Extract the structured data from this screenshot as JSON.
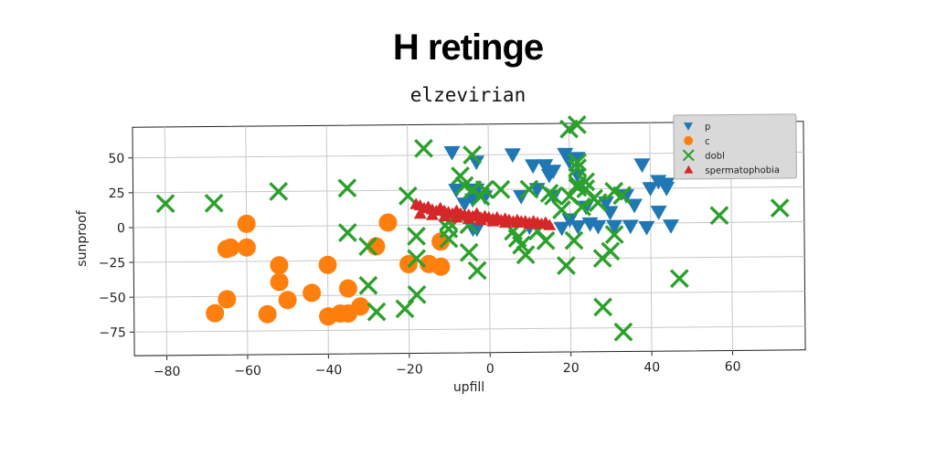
{
  "chart_data": {
    "type": "scatter",
    "title": "H retinge",
    "subtitle": "elzevirian",
    "xlabel": "upfill",
    "ylabel": "sunproof",
    "xlim": [
      -88,
      78
    ],
    "ylim": [
      -92,
      72
    ],
    "xticks": [
      -80,
      -60,
      -40,
      -20,
      0,
      20,
      40,
      60
    ],
    "yticks": [
      50,
      25,
      0,
      -25,
      -50,
      -75
    ],
    "grid": true,
    "legend": "top-right",
    "series": [
      {
        "name": "p",
        "marker": "triangle-down",
        "color": "#1f77b4",
        "points": [
          [
            -8,
            25
          ],
          [
            -4,
            18
          ],
          [
            -2,
            3
          ],
          [
            -4,
            -3
          ],
          [
            -3,
            25
          ],
          [
            -3,
            45
          ],
          [
            -9,
            52
          ],
          [
            -1,
            20
          ],
          [
            -6,
            15
          ],
          [
            -3,
            -3
          ],
          [
            6,
            50
          ],
          [
            8,
            20
          ],
          [
            10,
            -2
          ],
          [
            11,
            42
          ],
          [
            14,
            42
          ],
          [
            15,
            35
          ],
          [
            16,
            38
          ],
          [
            19,
            50
          ],
          [
            20,
            45
          ],
          [
            22,
            47
          ],
          [
            18,
            -3
          ],
          [
            20,
            3
          ],
          [
            24,
            12
          ],
          [
            22,
            -2
          ],
          [
            27,
            -2
          ],
          [
            29,
            15
          ],
          [
            30,
            8
          ],
          [
            31,
            -2
          ],
          [
            35,
            -2
          ],
          [
            36,
            13
          ],
          [
            34,
            20
          ],
          [
            38,
            42
          ],
          [
            39,
            -3
          ],
          [
            40,
            25
          ],
          [
            42,
            8
          ],
          [
            42,
            30
          ],
          [
            44,
            25
          ],
          [
            44,
            28
          ],
          [
            45,
            -2
          ],
          [
            16,
            20
          ],
          [
            12,
            25
          ],
          [
            22,
            35
          ],
          [
            25,
            0
          ]
        ]
      },
      {
        "name": "c",
        "color": "#ff7f0e",
        "marker": "circle",
        "points": [
          [
            -60,
            2
          ],
          [
            -64,
            -15
          ],
          [
            -60,
            -15
          ],
          [
            -65,
            -16
          ],
          [
            -52,
            -28
          ],
          [
            -52,
            -40
          ],
          [
            -50,
            -53
          ],
          [
            -44,
            -48
          ],
          [
            -40,
            -28
          ],
          [
            -40,
            -65
          ],
          [
            -37,
            -63
          ],
          [
            -35,
            -63
          ],
          [
            -35,
            -45
          ],
          [
            -32,
            -58
          ],
          [
            -28,
            -15
          ],
          [
            -25,
            2
          ],
          [
            -20,
            -28
          ],
          [
            -15,
            -28
          ],
          [
            -12,
            -12
          ],
          [
            -12,
            -30
          ],
          [
            -65,
            -52
          ],
          [
            -68,
            -62
          ],
          [
            -55,
            -63
          ]
        ]
      },
      {
        "name": "dobl",
        "color": "#2ca02c",
        "marker": "x",
        "points": [
          [
            -80,
            17
          ],
          [
            -68,
            17
          ],
          [
            -52,
            25
          ],
          [
            -35,
            27
          ],
          [
            -35,
            -5
          ],
          [
            -30,
            -15
          ],
          [
            -30,
            -43
          ],
          [
            -28,
            -62
          ],
          [
            -21,
            -60
          ],
          [
            -18,
            -8
          ],
          [
            -18,
            -50
          ],
          [
            -18,
            -24
          ],
          [
            -20,
            21
          ],
          [
            -16,
            55
          ],
          [
            -10,
            -10
          ],
          [
            -10,
            -3
          ],
          [
            -10,
            2
          ],
          [
            -5,
            0
          ],
          [
            -7,
            35
          ],
          [
            -6,
            28
          ],
          [
            -4,
            25
          ],
          [
            -2,
            20
          ],
          [
            -1,
            25
          ],
          [
            -5,
            -20
          ],
          [
            -4,
            50
          ],
          [
            -3,
            -33
          ],
          [
            3,
            25
          ],
          [
            6,
            -5
          ],
          [
            7,
            -10
          ],
          [
            8,
            -15
          ],
          [
            9,
            -22
          ],
          [
            10,
            25
          ],
          [
            12,
            -5
          ],
          [
            14,
            -12
          ],
          [
            15,
            22
          ],
          [
            16,
            20
          ],
          [
            18,
            10
          ],
          [
            19,
            -30
          ],
          [
            20,
            20
          ],
          [
            21,
            -12
          ],
          [
            22,
            26
          ],
          [
            22,
            40
          ],
          [
            22,
            28
          ],
          [
            23,
            12
          ],
          [
            24,
            25
          ],
          [
            26,
            18
          ],
          [
            27,
            15
          ],
          [
            28,
            -25
          ],
          [
            28,
            -60
          ],
          [
            30,
            -20
          ],
          [
            31,
            -8
          ],
          [
            31,
            23
          ],
          [
            33,
            20
          ],
          [
            33,
            -78
          ],
          [
            47,
            -40
          ],
          [
            57,
            5
          ],
          [
            72,
            10
          ],
          [
            20,
            68
          ],
          [
            22,
            71
          ],
          [
            22,
            44
          ],
          [
            24,
            30
          ]
        ]
      },
      {
        "name": "spermatophobia",
        "color": "#d62728",
        "marker": "triangle-up",
        "points": [
          [
            -18,
            15
          ],
          [
            -17,
            14
          ],
          [
            -16,
            12
          ],
          [
            -15,
            13
          ],
          [
            -14,
            11
          ],
          [
            -13,
            10
          ],
          [
            -12,
            12
          ],
          [
            -11,
            10
          ],
          [
            -10,
            9
          ],
          [
            -9,
            8
          ],
          [
            -8,
            10
          ],
          [
            -7,
            8
          ],
          [
            -6,
            7
          ],
          [
            -5,
            7
          ],
          [
            -4,
            6
          ],
          [
            -3,
            8
          ],
          [
            -2,
            5
          ],
          [
            -1,
            6
          ],
          [
            0,
            5
          ],
          [
            1,
            4
          ],
          [
            2,
            5
          ],
          [
            3,
            3
          ],
          [
            4,
            4
          ],
          [
            5,
            3
          ],
          [
            6,
            2
          ],
          [
            7,
            3
          ],
          [
            8,
            2
          ],
          [
            9,
            2
          ],
          [
            10,
            1
          ],
          [
            11,
            2
          ],
          [
            12,
            1
          ],
          [
            13,
            0
          ],
          [
            14,
            1
          ],
          [
            15,
            -1
          ],
          [
            -17,
            8
          ],
          [
            -14,
            7
          ],
          [
            -11,
            6
          ],
          [
            -8,
            5
          ],
          [
            -5,
            4
          ],
          [
            -2,
            3
          ],
          [
            1,
            2
          ],
          [
            4,
            1
          ],
          [
            7,
            1
          ],
          [
            10,
            0
          ],
          [
            13,
            0
          ]
        ]
      }
    ]
  }
}
